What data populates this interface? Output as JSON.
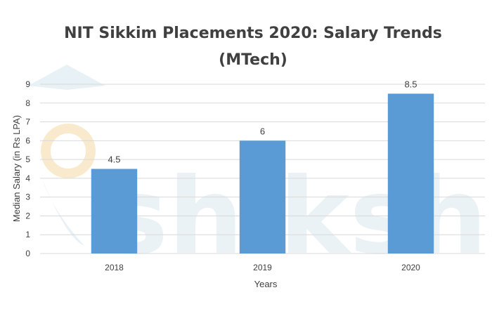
{
  "watermark": {
    "text": "shiksha"
  },
  "chart_data": {
    "type": "bar",
    "title_lines": [
      "NIT Sikkim Placements 2020: Salary Trends",
      "(MTech)"
    ],
    "categories": [
      "2018",
      "2019",
      "2020"
    ],
    "values": [
      4.5,
      6,
      8.5
    ],
    "data_labels": [
      "4.5",
      "6",
      "8.5"
    ],
    "xlabel": "Years",
    "ylabel": "Median Salary (in Rs LPA)",
    "ylim": [
      0,
      9
    ],
    "yticks": [
      0,
      1,
      2,
      3,
      4,
      5,
      6,
      7,
      8,
      9
    ],
    "grid": true,
    "legend": "none",
    "bar_color": "#5b9bd5",
    "grid_color": "#d9d9d9"
  }
}
